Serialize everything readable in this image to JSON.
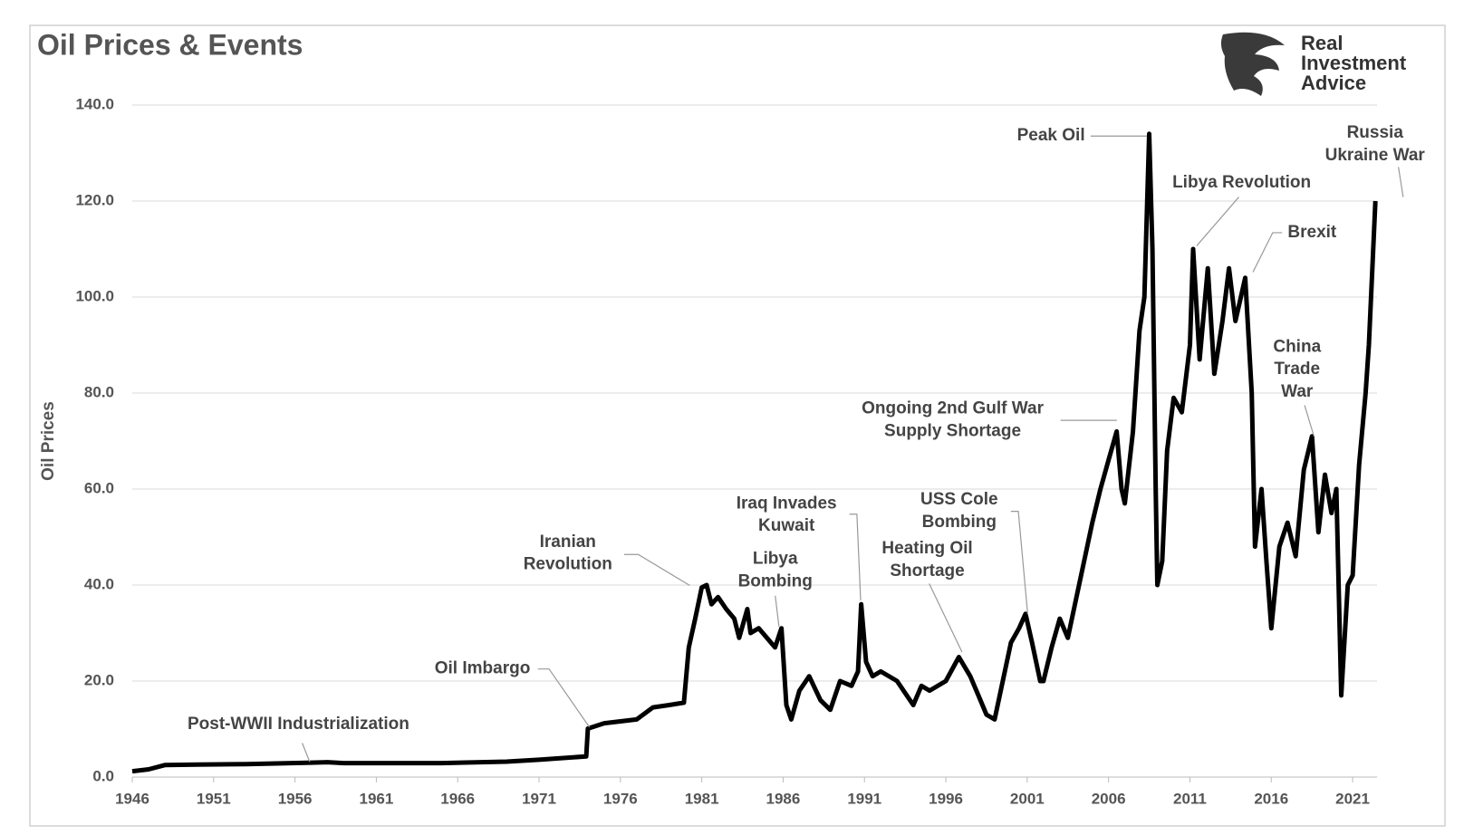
{
  "chart_data": {
    "type": "line",
    "title": "Oil Prices & Events",
    "ylabel": "Oil Prices",
    "logo": [
      "Real",
      "Investment",
      "Advice"
    ],
    "color": "#000000",
    "grid": true,
    "xlim": [
      1946,
      2022.5
    ],
    "xticks": [
      1946,
      1951,
      1956,
      1961,
      1966,
      1971,
      1976,
      1981,
      1986,
      1991,
      1996,
      2001,
      2006,
      2011,
      2016,
      2021
    ],
    "ylim": [
      0,
      140
    ],
    "yticks": [
      {
        "value": 0,
        "label": "0.0"
      },
      {
        "value": 20,
        "label": "20.0"
      },
      {
        "value": 40,
        "label": "40.0"
      },
      {
        "value": 60,
        "label": "60.0"
      },
      {
        "value": 80,
        "label": "80.0"
      },
      {
        "value": 100,
        "label": "100.0"
      },
      {
        "value": 120,
        "label": "120.0"
      },
      {
        "value": 140,
        "label": "140.0"
      }
    ],
    "x": [
      1946,
      1947,
      1948,
      1950,
      1953,
      1957,
      1958,
      1959,
      1965,
      1969,
      1971,
      1973.9,
      1974.0,
      1975,
      1977,
      1978,
      1979,
      1979.9,
      1980.2,
      1980.6,
      1981,
      1981.3,
      1981.6,
      1982,
      1982.5,
      1983,
      1983.3,
      1983.8,
      1984,
      1984.5,
      1985,
      1985.5,
      1985.9,
      1986.2,
      1986.5,
      1987,
      1987.6,
      1988.3,
      1988.9,
      1989.5,
      1990.2,
      1990.6,
      1990.8,
      1991.1,
      1991.5,
      1992,
      1993,
      1994,
      1994.5,
      1995,
      1996,
      1996.8,
      1997.5,
      1998,
      1998.5,
      1999,
      1999.5,
      2000,
      2000.5,
      2000.9,
      2001.3,
      2001.8,
      2002,
      2002.5,
      2003,
      2003.5,
      2004,
      2004.5,
      2005,
      2005.5,
      2006,
      2006.5,
      2006.8,
      2007,
      2007.5,
      2007.9,
      2008.2,
      2008.5,
      2008.7,
      2008.9,
      2009,
      2009.3,
      2009.6,
      2010,
      2010.5,
      2011,
      2011.2,
      2011.6,
      2012.1,
      2012.5,
      2013,
      2013.4,
      2013.8,
      2014.4,
      2014.8,
      2015,
      2015.4,
      2015.7,
      2016,
      2016.5,
      2017,
      2017.5,
      2018,
      2018.5,
      2018.9,
      2019.3,
      2019.7,
      2020,
      2020.3,
      2020.7,
      2021,
      2021.4,
      2021.8,
      2022,
      2022.4
    ],
    "values": [
      1.2,
      1.6,
      2.5,
      2.6,
      2.7,
      3.0,
      3.1,
      2.9,
      2.9,
      3.2,
      3.6,
      4.3,
      10.1,
      11.2,
      12,
      14.5,
      15,
      15.5,
      27,
      33,
      39.5,
      40,
      36,
      37.5,
      35,
      33,
      29,
      35,
      30,
      31,
      29,
      27,
      31,
      15,
      12,
      18,
      21,
      16,
      14,
      20,
      19,
      22,
      36,
      24,
      21,
      22,
      20,
      15,
      19,
      18,
      20,
      25,
      21,
      17,
      13,
      12,
      20,
      28,
      31,
      34,
      28,
      20,
      20,
      27,
      33,
      29,
      37,
      45,
      53,
      60,
      66,
      72,
      60,
      57,
      72,
      93,
      100,
      134,
      110,
      60,
      40,
      45,
      68,
      79,
      76,
      90,
      110,
      87,
      106,
      84,
      95,
      106,
      95,
      104,
      80,
      48,
      60,
      45,
      31,
      48,
      53,
      46,
      64,
      71,
      51,
      63,
      55,
      60,
      17,
      40,
      42,
      65,
      80,
      90,
      120
    ],
    "annotations": [
      [
        "Post-WWII Industrialization"
      ],
      [
        "Oil Imbargo"
      ],
      [
        "Iranian",
        "Revolution"
      ],
      [
        "Libya",
        "Bombing"
      ],
      [
        "Iraq Invades",
        "Kuwait"
      ],
      [
        "Heating Oil",
        "Shortage"
      ],
      [
        "USS Cole",
        "Bombing"
      ],
      [
        "Ongoing 2nd Gulf War",
        "Supply Shortage"
      ],
      [
        "Peak Oil"
      ],
      [
        "Libya Revolution"
      ],
      [
        "Brexit"
      ],
      [
        "China",
        "Trade",
        "War"
      ],
      [
        "Russia",
        "Ukraine War"
      ]
    ]
  }
}
